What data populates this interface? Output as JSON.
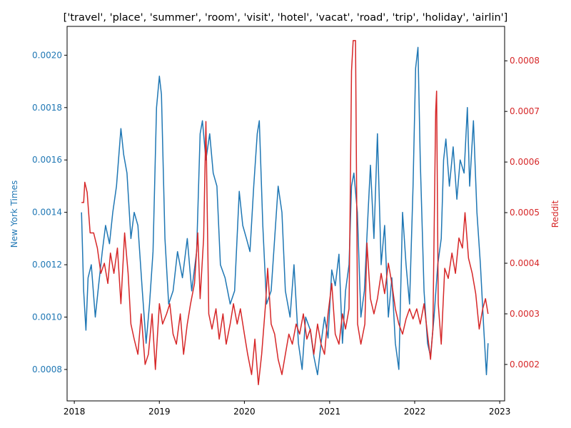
{
  "chart_data": {
    "type": "line",
    "title": "['travel', 'place', 'summer', 'room', 'visit', 'hotel', 'vacat', 'road', 'trip', 'holiday', 'airlin']",
    "xlabel": "",
    "x_ticks": [
      "2018",
      "2019",
      "2020",
      "2021",
      "2022",
      "2023"
    ],
    "x_range": [
      "2017-12-01",
      "2023-01-22"
    ],
    "grid": false,
    "series": [
      {
        "name": "New York Times",
        "axis": "left",
        "color": "#1f77b4",
        "ylabel": "New York Times",
        "ylim": [
          0.00068,
          0.00211
        ],
        "y_ticks": [
          "0.0008",
          "0.0010",
          "0.0012",
          "0.0014",
          "0.0016",
          "0.0018",
          "0.0020"
        ],
        "points": [
          [
            "2018-02-01",
            0.0014
          ],
          [
            "2018-02-10",
            0.0011
          ],
          [
            "2018-02-20",
            0.00095
          ],
          [
            "2018-03-01",
            0.00115
          ],
          [
            "2018-03-15",
            0.0012
          ],
          [
            "2018-04-01",
            0.001
          ],
          [
            "2018-04-15",
            0.00112
          ],
          [
            "2018-05-01",
            0.00125
          ],
          [
            "2018-05-15",
            0.00135
          ],
          [
            "2018-06-01",
            0.00128
          ],
          [
            "2018-06-15",
            0.0014
          ],
          [
            "2018-07-01",
            0.0015
          ],
          [
            "2018-07-20",
            0.00172
          ],
          [
            "2018-08-01",
            0.00162
          ],
          [
            "2018-08-15",
            0.00155
          ],
          [
            "2018-09-01",
            0.0013
          ],
          [
            "2018-09-15",
            0.0014
          ],
          [
            "2018-10-01",
            0.00135
          ],
          [
            "2018-10-20",
            0.0011
          ],
          [
            "2018-11-05",
            0.0009
          ],
          [
            "2018-11-20",
            0.00105
          ],
          [
            "2018-12-05",
            0.00125
          ],
          [
            "2018-12-20",
            0.0018
          ],
          [
            "2019-01-01",
            0.00192
          ],
          [
            "2019-01-10",
            0.00185
          ],
          [
            "2019-01-25",
            0.0013
          ],
          [
            "2019-02-10",
            0.00105
          ],
          [
            "2019-03-01",
            0.0011
          ],
          [
            "2019-03-20",
            0.00125
          ],
          [
            "2019-04-10",
            0.00115
          ],
          [
            "2019-05-01",
            0.0013
          ],
          [
            "2019-05-20",
            0.0011
          ],
          [
            "2019-06-10",
            0.00125
          ],
          [
            "2019-06-25",
            0.0017
          ],
          [
            "2019-07-05",
            0.00175
          ],
          [
            "2019-07-20",
            0.0016
          ],
          [
            "2019-08-05",
            0.0017
          ],
          [
            "2019-08-20",
            0.00155
          ],
          [
            "2019-09-05",
            0.0015
          ],
          [
            "2019-09-20",
            0.0012
          ],
          [
            "2019-10-10",
            0.00115
          ],
          [
            "2019-11-01",
            0.00105
          ],
          [
            "2019-11-20",
            0.0011
          ],
          [
            "2019-12-10",
            0.00148
          ],
          [
            "2019-12-25",
            0.00135
          ],
          [
            "2020-01-10",
            0.0013
          ],
          [
            "2020-01-25",
            0.00125
          ],
          [
            "2020-02-10",
            0.0015
          ],
          [
            "2020-02-25",
            0.0017
          ],
          [
            "2020-03-05",
            0.00175
          ],
          [
            "2020-03-20",
            0.00135
          ],
          [
            "2020-04-05",
            0.00105
          ],
          [
            "2020-04-25",
            0.0011
          ],
          [
            "2020-05-10",
            0.0013
          ],
          [
            "2020-05-25",
            0.0015
          ],
          [
            "2020-06-10",
            0.0014
          ],
          [
            "2020-06-25",
            0.0011
          ],
          [
            "2020-07-15",
            0.001
          ],
          [
            "2020-08-01",
            0.0012
          ],
          [
            "2020-08-20",
            0.0009
          ],
          [
            "2020-09-05",
            0.0008
          ],
          [
            "2020-09-20",
            0.001
          ],
          [
            "2020-10-10",
            0.00095
          ],
          [
            "2020-10-25",
            0.00085
          ],
          [
            "2020-11-10",
            0.00078
          ],
          [
            "2020-11-25",
            0.0009
          ],
          [
            "2020-12-10",
            0.001
          ],
          [
            "2020-12-25",
            0.00092
          ],
          [
            "2021-01-10",
            0.00118
          ],
          [
            "2021-01-25",
            0.00112
          ],
          [
            "2021-02-10",
            0.00124
          ],
          [
            "2021-02-25",
            0.0009
          ],
          [
            "2021-03-10",
            0.0011
          ],
          [
            "2021-03-25",
            0.0012
          ],
          [
            "2021-04-05",
            0.0015
          ],
          [
            "2021-04-15",
            0.00155
          ],
          [
            "2021-04-30",
            0.0014
          ],
          [
            "2021-05-15",
            0.001
          ],
          [
            "2021-05-30",
            0.0011
          ],
          [
            "2021-06-15",
            0.0014
          ],
          [
            "2021-06-25",
            0.00158
          ],
          [
            "2021-07-10",
            0.0013
          ],
          [
            "2021-07-25",
            0.0017
          ],
          [
            "2021-08-10",
            0.0012
          ],
          [
            "2021-08-25",
            0.00135
          ],
          [
            "2021-09-10",
            0.001
          ],
          [
            "2021-09-25",
            0.00115
          ],
          [
            "2021-10-10",
            0.0009
          ],
          [
            "2021-10-25",
            0.0008
          ],
          [
            "2021-11-10",
            0.0014
          ],
          [
            "2021-11-25",
            0.0012
          ],
          [
            "2021-12-10",
            0.00105
          ],
          [
            "2021-12-25",
            0.0015
          ],
          [
            "2022-01-05",
            0.00195
          ],
          [
            "2022-01-15",
            0.00203
          ],
          [
            "2022-01-25",
            0.0016
          ],
          [
            "2022-02-10",
            0.0011
          ],
          [
            "2022-02-25",
            0.0009
          ],
          [
            "2022-03-10",
            0.00085
          ],
          [
            "2022-03-25",
            0.001
          ],
          [
            "2022-04-10",
            0.0012
          ],
          [
            "2022-04-25",
            0.0013
          ],
          [
            "2022-05-05",
            0.0016
          ],
          [
            "2022-05-15",
            0.00168
          ],
          [
            "2022-05-30",
            0.0015
          ],
          [
            "2022-06-15",
            0.00165
          ],
          [
            "2022-07-01",
            0.00145
          ],
          [
            "2022-07-15",
            0.0016
          ],
          [
            "2022-08-01",
            0.00155
          ],
          [
            "2022-08-15",
            0.0018
          ],
          [
            "2022-08-25",
            0.0015
          ],
          [
            "2022-09-10",
            0.00175
          ],
          [
            "2022-09-25",
            0.0014
          ],
          [
            "2022-10-10",
            0.0012
          ],
          [
            "2022-10-25",
            0.00095
          ],
          [
            "2022-11-05",
            0.00078
          ],
          [
            "2022-11-12",
            0.0009
          ]
        ]
      },
      {
        "name": "Reddit",
        "axis": "right",
        "color": "#d62728",
        "ylabel": "Reddit",
        "ylim": [
          0.000128,
          0.000868
        ],
        "y_ticks": [
          "0.0002",
          "0.0003",
          "0.0004",
          "0.0005",
          "0.0006",
          "0.0007",
          "0.0008"
        ],
        "points": [
          [
            "2018-02-01",
            0.00052
          ],
          [
            "2018-02-10",
            0.00052
          ],
          [
            "2018-02-15",
            0.00056
          ],
          [
            "2018-02-25",
            0.00054
          ],
          [
            "2018-03-10",
            0.00046
          ],
          [
            "2018-03-25",
            0.00046
          ],
          [
            "2018-04-10",
            0.00043
          ],
          [
            "2018-04-25",
            0.00038
          ],
          [
            "2018-05-10",
            0.0004
          ],
          [
            "2018-05-25",
            0.00036
          ],
          [
            "2018-06-05",
            0.00042
          ],
          [
            "2018-06-20",
            0.00038
          ],
          [
            "2018-07-05",
            0.00043
          ],
          [
            "2018-07-20",
            0.00032
          ],
          [
            "2018-08-05",
            0.00046
          ],
          [
            "2018-08-20",
            0.00038
          ],
          [
            "2018-09-01",
            0.00028
          ],
          [
            "2018-09-15",
            0.00025
          ],
          [
            "2018-10-01",
            0.00022
          ],
          [
            "2018-10-15",
            0.0003
          ],
          [
            "2018-11-01",
            0.0002
          ],
          [
            "2018-11-15",
            0.00022
          ],
          [
            "2018-12-01",
            0.0003
          ],
          [
            "2018-12-15",
            0.00019
          ],
          [
            "2019-01-01",
            0.00032
          ],
          [
            "2019-01-15",
            0.00028
          ],
          [
            "2019-02-01",
            0.0003
          ],
          [
            "2019-02-15",
            0.00032
          ],
          [
            "2019-03-01",
            0.00026
          ],
          [
            "2019-03-15",
            0.00024
          ],
          [
            "2019-04-01",
            0.0003
          ],
          [
            "2019-04-15",
            0.00022
          ],
          [
            "2019-05-01",
            0.00028
          ],
          [
            "2019-05-15",
            0.00032
          ],
          [
            "2019-06-01",
            0.00036
          ],
          [
            "2019-06-15",
            0.00046
          ],
          [
            "2019-06-25",
            0.00033
          ],
          [
            "2019-07-10",
            0.00045
          ],
          [
            "2019-07-20",
            0.00068
          ],
          [
            "2019-08-01",
            0.0003
          ],
          [
            "2019-08-15",
            0.00027
          ],
          [
            "2019-09-01",
            0.00031
          ],
          [
            "2019-09-15",
            0.00025
          ],
          [
            "2019-10-01",
            0.0003
          ],
          [
            "2019-10-15",
            0.00024
          ],
          [
            "2019-11-01",
            0.00028
          ],
          [
            "2019-11-15",
            0.00032
          ],
          [
            "2019-12-01",
            0.00028
          ],
          [
            "2019-12-15",
            0.00031
          ],
          [
            "2020-01-01",
            0.00026
          ],
          [
            "2020-01-15",
            0.00022
          ],
          [
            "2020-02-01",
            0.00018
          ],
          [
            "2020-02-15",
            0.00025
          ],
          [
            "2020-03-01",
            0.00016
          ],
          [
            "2020-03-15",
            0.00022
          ],
          [
            "2020-04-01",
            0.00032
          ],
          [
            "2020-04-10",
            0.00039
          ],
          [
            "2020-04-25",
            0.00028
          ],
          [
            "2020-05-10",
            0.00026
          ],
          [
            "2020-05-25",
            0.00021
          ],
          [
            "2020-06-10",
            0.00018
          ],
          [
            "2020-06-25",
            0.00022
          ],
          [
            "2020-07-10",
            0.00026
          ],
          [
            "2020-07-25",
            0.00024
          ],
          [
            "2020-08-10",
            0.00028
          ],
          [
            "2020-08-25",
            0.00026
          ],
          [
            "2020-09-10",
            0.0003
          ],
          [
            "2020-09-25",
            0.00025
          ],
          [
            "2020-10-10",
            0.00027
          ],
          [
            "2020-10-25",
            0.00022
          ],
          [
            "2020-11-10",
            0.00028
          ],
          [
            "2020-11-25",
            0.00024
          ],
          [
            "2020-12-10",
            0.00022
          ],
          [
            "2020-12-25",
            0.0003
          ],
          [
            "2021-01-10",
            0.00036
          ],
          [
            "2021-01-25",
            0.00026
          ],
          [
            "2021-02-10",
            0.00024
          ],
          [
            "2021-02-25",
            0.0003
          ],
          [
            "2021-03-10",
            0.00027
          ],
          [
            "2021-03-25",
            0.00031
          ],
          [
            "2021-04-01",
            0.0006
          ],
          [
            "2021-04-05",
            0.00078
          ],
          [
            "2021-04-12",
            0.00084
          ],
          [
            "2021-04-22",
            0.00084
          ],
          [
            "2021-05-01",
            0.00028
          ],
          [
            "2021-05-15",
            0.00024
          ],
          [
            "2021-06-01",
            0.00028
          ],
          [
            "2021-06-10",
            0.00044
          ],
          [
            "2021-06-25",
            0.00033
          ],
          [
            "2021-07-10",
            0.0003
          ],
          [
            "2021-07-25",
            0.00033
          ],
          [
            "2021-08-10",
            0.00038
          ],
          [
            "2021-08-25",
            0.00034
          ],
          [
            "2021-09-10",
            0.0004
          ],
          [
            "2021-09-25",
            0.00036
          ],
          [
            "2021-10-10",
            0.00031
          ],
          [
            "2021-10-25",
            0.00028
          ],
          [
            "2021-11-10",
            0.00026
          ],
          [
            "2021-11-25",
            0.00029
          ],
          [
            "2021-12-10",
            0.00031
          ],
          [
            "2021-12-25",
            0.00029
          ],
          [
            "2022-01-10",
            0.00031
          ],
          [
            "2022-01-25",
            0.00028
          ],
          [
            "2022-02-10",
            0.00032
          ],
          [
            "2022-02-25",
            0.00026
          ],
          [
            "2022-03-10",
            0.00021
          ],
          [
            "2022-03-20",
            0.00027
          ],
          [
            "2022-04-01",
            0.0007
          ],
          [
            "2022-04-05",
            0.00074
          ],
          [
            "2022-04-12",
            0.00032
          ],
          [
            "2022-04-25",
            0.00024
          ],
          [
            "2022-05-10",
            0.00039
          ],
          [
            "2022-05-25",
            0.00037
          ],
          [
            "2022-06-10",
            0.00042
          ],
          [
            "2022-06-25",
            0.00038
          ],
          [
            "2022-07-10",
            0.00045
          ],
          [
            "2022-07-25",
            0.00043
          ],
          [
            "2022-08-05",
            0.0005
          ],
          [
            "2022-08-20",
            0.00041
          ],
          [
            "2022-09-05",
            0.00038
          ],
          [
            "2022-09-20",
            0.00034
          ],
          [
            "2022-10-05",
            0.00027
          ],
          [
            "2022-10-20",
            0.00031
          ],
          [
            "2022-11-01",
            0.00033
          ],
          [
            "2022-11-12",
            0.0003
          ]
        ]
      }
    ]
  }
}
